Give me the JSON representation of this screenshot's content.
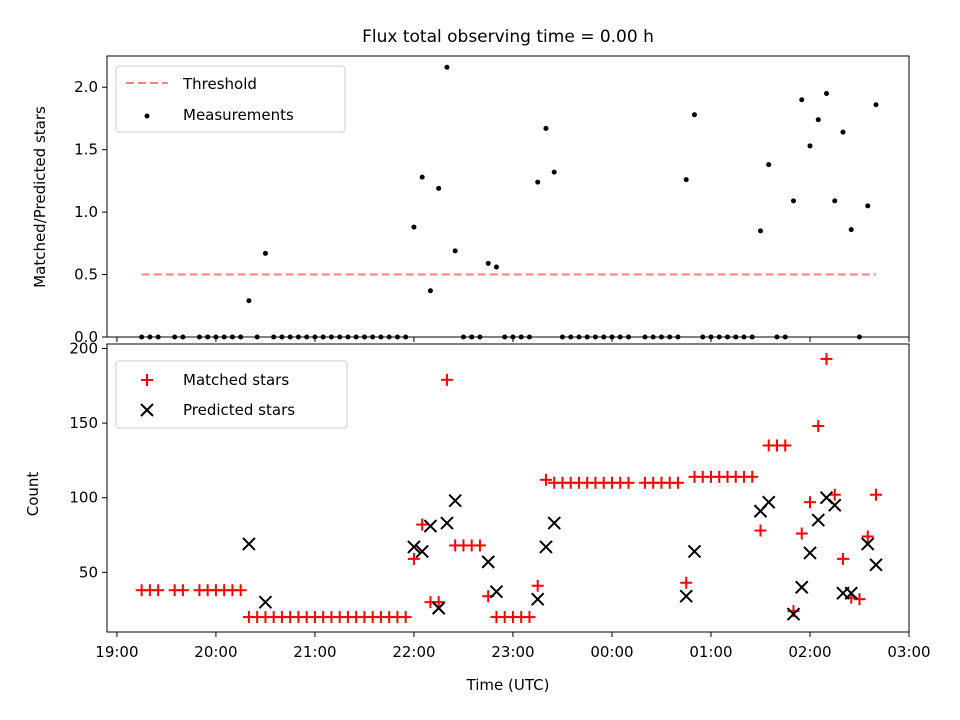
{
  "chart_data": [
    {
      "type": "scatter",
      "title": "Flux total observing time = 0.00 h",
      "xlabel": "",
      "ylabel": "Matched/Predicted stars",
      "xlim": [
        "18:54",
        "03:00"
      ],
      "ylim": [
        0,
        2.25
      ],
      "yticks": [
        "0.0",
        "0.5",
        "1.0",
        "1.5",
        "2.0"
      ],
      "grid": false,
      "legend": "top-left",
      "series": [
        {
          "name": "Threshold",
          "style": "dashed-line",
          "color": "#ff7f7f",
          "points": [
            {
              "x": "19:15",
              "y": 0.5
            },
            {
              "x": "02:40",
              "y": 0.5
            }
          ]
        },
        {
          "name": "Measurements",
          "style": "dot",
          "color": "#000000",
          "points": [
            {
              "x": "19:15",
              "y": 0
            },
            {
              "x": "19:20",
              "y": 0
            },
            {
              "x": "19:25",
              "y": 0
            },
            {
              "x": "19:35",
              "y": 0
            },
            {
              "x": "19:40",
              "y": 0
            },
            {
              "x": "19:50",
              "y": 0
            },
            {
              "x": "19:55",
              "y": 0
            },
            {
              "x": "20:00",
              "y": 0
            },
            {
              "x": "20:05",
              "y": 0
            },
            {
              "x": "20:10",
              "y": 0
            },
            {
              "x": "20:15",
              "y": 0
            },
            {
              "x": "20:20",
              "y": 0.29
            },
            {
              "x": "20:25",
              "y": 0
            },
            {
              "x": "20:30",
              "y": 0.67
            },
            {
              "x": "20:35",
              "y": 0
            },
            {
              "x": "20:40",
              "y": 0
            },
            {
              "x": "20:45",
              "y": 0
            },
            {
              "x": "20:50",
              "y": 0
            },
            {
              "x": "20:55",
              "y": 0
            },
            {
              "x": "21:00",
              "y": 0
            },
            {
              "x": "21:05",
              "y": 0
            },
            {
              "x": "21:10",
              "y": 0
            },
            {
              "x": "21:15",
              "y": 0
            },
            {
              "x": "21:20",
              "y": 0
            },
            {
              "x": "21:25",
              "y": 0
            },
            {
              "x": "21:30",
              "y": 0
            },
            {
              "x": "21:35",
              "y": 0
            },
            {
              "x": "21:40",
              "y": 0
            },
            {
              "x": "21:45",
              "y": 0
            },
            {
              "x": "21:50",
              "y": 0
            },
            {
              "x": "21:55",
              "y": 0
            },
            {
              "x": "22:00",
              "y": 0.88
            },
            {
              "x": "22:05",
              "y": 1.28
            },
            {
              "x": "22:10",
              "y": 0.37
            },
            {
              "x": "22:15",
              "y": 1.19
            },
            {
              "x": "22:20",
              "y": 2.16
            },
            {
              "x": "22:25",
              "y": 0.69
            },
            {
              "x": "22:30",
              "y": 0
            },
            {
              "x": "22:35",
              "y": 0
            },
            {
              "x": "22:40",
              "y": 0
            },
            {
              "x": "22:45",
              "y": 0.59
            },
            {
              "x": "22:50",
              "y": 0.56
            },
            {
              "x": "22:55",
              "y": 0
            },
            {
              "x": "23:00",
              "y": 0
            },
            {
              "x": "23:05",
              "y": 0
            },
            {
              "x": "23:10",
              "y": 0
            },
            {
              "x": "23:15",
              "y": 1.24
            },
            {
              "x": "23:20",
              "y": 1.67
            },
            {
              "x": "23:25",
              "y": 1.32
            },
            {
              "x": "23:30",
              "y": 0
            },
            {
              "x": "23:35",
              "y": 0
            },
            {
              "x": "23:40",
              "y": 0
            },
            {
              "x": "23:45",
              "y": 0
            },
            {
              "x": "23:50",
              "y": 0
            },
            {
              "x": "23:55",
              "y": 0
            },
            {
              "x": "00:00",
              "y": 0
            },
            {
              "x": "00:05",
              "y": 0
            },
            {
              "x": "00:10",
              "y": 0
            },
            {
              "x": "00:20",
              "y": 0
            },
            {
              "x": "00:25",
              "y": 0
            },
            {
              "x": "00:30",
              "y": 0
            },
            {
              "x": "00:35",
              "y": 0
            },
            {
              "x": "00:40",
              "y": 0
            },
            {
              "x": "00:45",
              "y": 1.26
            },
            {
              "x": "00:50",
              "y": 1.78
            },
            {
              "x": "00:55",
              "y": 0
            },
            {
              "x": "01:00",
              "y": 0
            },
            {
              "x": "01:05",
              "y": 0
            },
            {
              "x": "01:10",
              "y": 0
            },
            {
              "x": "01:15",
              "y": 0
            },
            {
              "x": "01:20",
              "y": 0
            },
            {
              "x": "01:25",
              "y": 0
            },
            {
              "x": "01:30",
              "y": 0.85
            },
            {
              "x": "01:35",
              "y": 1.38
            },
            {
              "x": "01:40",
              "y": 0
            },
            {
              "x": "01:45",
              "y": 0
            },
            {
              "x": "01:50",
              "y": 1.09
            },
            {
              "x": "01:55",
              "y": 1.9
            },
            {
              "x": "02:00",
              "y": 1.53
            },
            {
              "x": "02:05",
              "y": 1.74
            },
            {
              "x": "02:10",
              "y": 1.95
            },
            {
              "x": "02:15",
              "y": 1.09
            },
            {
              "x": "02:20",
              "y": 1.64
            },
            {
              "x": "02:25",
              "y": 0.86
            },
            {
              "x": "02:30",
              "y": 0
            },
            {
              "x": "02:35",
              "y": 1.05
            },
            {
              "x": "02:40",
              "y": 1.86
            }
          ]
        }
      ]
    },
    {
      "type": "scatter",
      "title": "",
      "xlabel": "Time (UTC)",
      "ylabel": "Count",
      "xlim": [
        "18:54",
        "03:00"
      ],
      "ylim": [
        10,
        203
      ],
      "yticks": [
        "50",
        "100",
        "150",
        "200"
      ],
      "xticks": [
        "19:00",
        "20:00",
        "21:00",
        "22:00",
        "23:00",
        "00:00",
        "01:00",
        "02:00",
        "03:00"
      ],
      "grid": false,
      "legend": "top-left",
      "series": [
        {
          "name": "Matched stars",
          "marker": "+",
          "color": "#ff0000",
          "points": [
            {
              "x": "19:15",
              "y": 38
            },
            {
              "x": "19:20",
              "y": 38
            },
            {
              "x": "19:25",
              "y": 38
            },
            {
              "x": "19:35",
              "y": 38
            },
            {
              "x": "19:40",
              "y": 38
            },
            {
              "x": "19:50",
              "y": 38
            },
            {
              "x": "19:55",
              "y": 38
            },
            {
              "x": "20:00",
              "y": 38
            },
            {
              "x": "20:05",
              "y": 38
            },
            {
              "x": "20:10",
              "y": 38
            },
            {
              "x": "20:15",
              "y": 38
            },
            {
              "x": "20:20",
              "y": 20
            },
            {
              "x": "20:25",
              "y": 20
            },
            {
              "x": "20:30",
              "y": 20
            },
            {
              "x": "20:35",
              "y": 20
            },
            {
              "x": "20:40",
              "y": 20
            },
            {
              "x": "20:45",
              "y": 20
            },
            {
              "x": "20:50",
              "y": 20
            },
            {
              "x": "20:55",
              "y": 20
            },
            {
              "x": "21:00",
              "y": 20
            },
            {
              "x": "21:05",
              "y": 20
            },
            {
              "x": "21:10",
              "y": 20
            },
            {
              "x": "21:15",
              "y": 20
            },
            {
              "x": "21:20",
              "y": 20
            },
            {
              "x": "21:25",
              "y": 20
            },
            {
              "x": "21:30",
              "y": 20
            },
            {
              "x": "21:35",
              "y": 20
            },
            {
              "x": "21:40",
              "y": 20
            },
            {
              "x": "21:45",
              "y": 20
            },
            {
              "x": "21:50",
              "y": 20
            },
            {
              "x": "21:55",
              "y": 20
            },
            {
              "x": "22:00",
              "y": 59
            },
            {
              "x": "22:05",
              "y": 82
            },
            {
              "x": "22:10",
              "y": 30
            },
            {
              "x": "22:15",
              "y": 30
            },
            {
              "x": "22:20",
              "y": 179
            },
            {
              "x": "22:25",
              "y": 68
            },
            {
              "x": "22:30",
              "y": 68
            },
            {
              "x": "22:35",
              "y": 68
            },
            {
              "x": "22:40",
              "y": 68
            },
            {
              "x": "22:45",
              "y": 34
            },
            {
              "x": "22:50",
              "y": 20
            },
            {
              "x": "22:55",
              "y": 20
            },
            {
              "x": "23:00",
              "y": 20
            },
            {
              "x": "23:05",
              "y": 20
            },
            {
              "x": "23:10",
              "y": 20
            },
            {
              "x": "23:15",
              "y": 41
            },
            {
              "x": "23:20",
              "y": 112
            },
            {
              "x": "23:25",
              "y": 110
            },
            {
              "x": "23:30",
              "y": 110
            },
            {
              "x": "23:35",
              "y": 110
            },
            {
              "x": "23:40",
              "y": 110
            },
            {
              "x": "23:45",
              "y": 110
            },
            {
              "x": "23:50",
              "y": 110
            },
            {
              "x": "23:55",
              "y": 110
            },
            {
              "x": "00:00",
              "y": 110
            },
            {
              "x": "00:05",
              "y": 110
            },
            {
              "x": "00:10",
              "y": 110
            },
            {
              "x": "00:20",
              "y": 110
            },
            {
              "x": "00:25",
              "y": 110
            },
            {
              "x": "00:30",
              "y": 110
            },
            {
              "x": "00:35",
              "y": 110
            },
            {
              "x": "00:40",
              "y": 110
            },
            {
              "x": "00:45",
              "y": 43
            },
            {
              "x": "00:50",
              "y": 114
            },
            {
              "x": "00:55",
              "y": 114
            },
            {
              "x": "01:00",
              "y": 114
            },
            {
              "x": "01:05",
              "y": 114
            },
            {
              "x": "01:10",
              "y": 114
            },
            {
              "x": "01:15",
              "y": 114
            },
            {
              "x": "01:20",
              "y": 114
            },
            {
              "x": "01:25",
              "y": 114
            },
            {
              "x": "01:30",
              "y": 78
            },
            {
              "x": "01:35",
              "y": 135
            },
            {
              "x": "01:40",
              "y": 135
            },
            {
              "x": "01:45",
              "y": 135
            },
            {
              "x": "01:50",
              "y": 24
            },
            {
              "x": "01:55",
              "y": 76
            },
            {
              "x": "02:00",
              "y": 97
            },
            {
              "x": "02:05",
              "y": 148
            },
            {
              "x": "02:10",
              "y": 193
            },
            {
              "x": "02:15",
              "y": 102
            },
            {
              "x": "02:20",
              "y": 59
            },
            {
              "x": "02:25",
              "y": 33
            },
            {
              "x": "02:30",
              "y": 32
            },
            {
              "x": "02:35",
              "y": 74
            },
            {
              "x": "02:40",
              "y": 102
            }
          ]
        },
        {
          "name": "Predicted stars",
          "marker": "x",
          "color": "#000000",
          "points": [
            {
              "x": "20:20",
              "y": 69
            },
            {
              "x": "20:30",
              "y": 30
            },
            {
              "x": "22:00",
              "y": 67
            },
            {
              "x": "22:05",
              "y": 64
            },
            {
              "x": "22:10",
              "y": 81
            },
            {
              "x": "22:15",
              "y": 26
            },
            {
              "x": "22:20",
              "y": 83
            },
            {
              "x": "22:25",
              "y": 98
            },
            {
              "x": "22:45",
              "y": 57
            },
            {
              "x": "22:50",
              "y": 37
            },
            {
              "x": "23:15",
              "y": 32
            },
            {
              "x": "23:20",
              "y": 67
            },
            {
              "x": "23:25",
              "y": 83
            },
            {
              "x": "00:45",
              "y": 34
            },
            {
              "x": "00:50",
              "y": 64
            },
            {
              "x": "01:30",
              "y": 91
            },
            {
              "x": "01:35",
              "y": 97
            },
            {
              "x": "01:50",
              "y": 22
            },
            {
              "x": "01:55",
              "y": 40
            },
            {
              "x": "02:00",
              "y": 63
            },
            {
              "x": "02:05",
              "y": 85
            },
            {
              "x": "02:10",
              "y": 100
            },
            {
              "x": "02:15",
              "y": 95
            },
            {
              "x": "02:20",
              "y": 36
            },
            {
              "x": "02:25",
              "y": 36
            },
            {
              "x": "02:35",
              "y": 69
            },
            {
              "x": "02:40",
              "y": 55
            }
          ]
        }
      ]
    }
  ]
}
